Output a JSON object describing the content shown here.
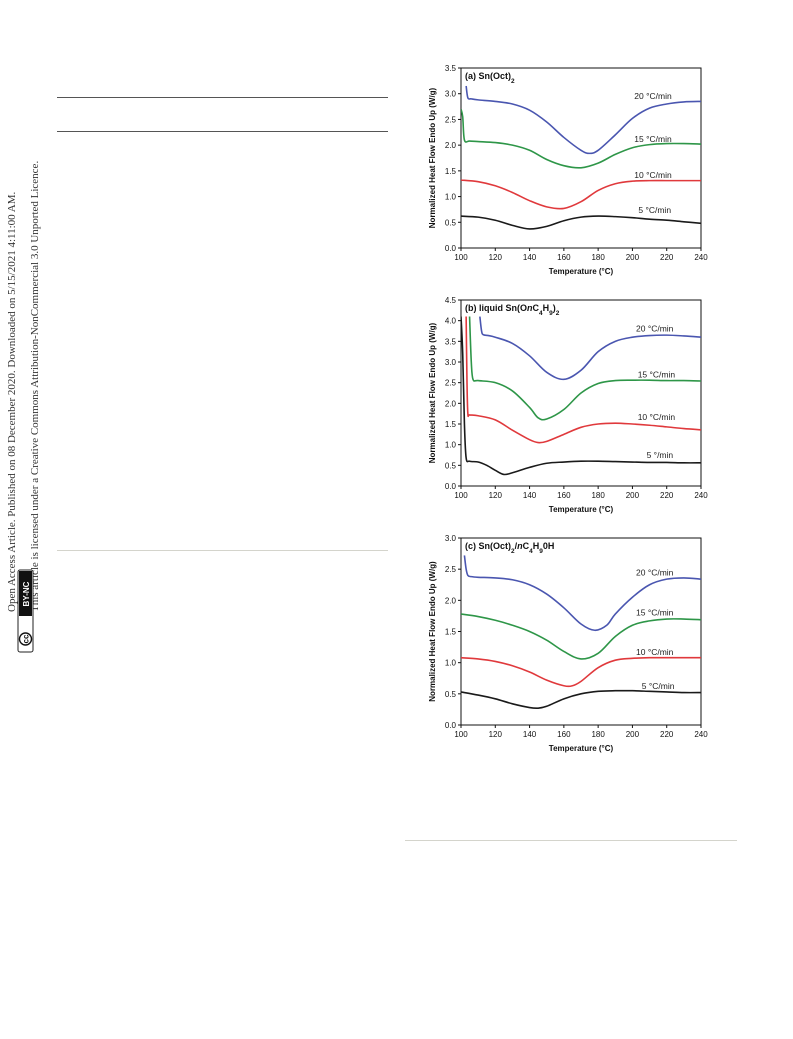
{
  "side_note": {
    "line1": "Open Access Article. Published on 08 December 2020. Downloaded on 5/15/2021 4:11:00 AM.",
    "line2": "This article is licensed under a Creative Commons Attribution-NonCommercial 3.0 Unported Licence.",
    "cc_badge": "cc",
    "license_badge": "BY-NC"
  },
  "colors": {
    "5": "#1a1a1a",
    "10": "#e0393c",
    "15": "#2e9648",
    "20": "#4a56b0"
  },
  "chart_data": [
    {
      "type": "line",
      "title": "(a) Sn(Oct)",
      "title_sub": "2",
      "xlabel": "Temperature (°C)",
      "ylabel": "Normalized Heat Flow Endo Up (W/g)",
      "xlim": [
        100,
        240
      ],
      "ylim": [
        0,
        3.5
      ],
      "xticks": [
        100,
        120,
        140,
        160,
        180,
        200,
        220,
        240
      ],
      "yticks": [
        0.0,
        0.5,
        1.0,
        1.5,
        2.0,
        2.5,
        3.0,
        3.5
      ],
      "series": [
        {
          "key": "5",
          "label": "5 °C/min",
          "label_at": [
            213,
            0.68
          ],
          "x": [
            100,
            110,
            120,
            130,
            140,
            150,
            160,
            170,
            180,
            190,
            200,
            210,
            220,
            230,
            240
          ],
          "y": [
            0.62,
            0.6,
            0.54,
            0.44,
            0.37,
            0.42,
            0.53,
            0.6,
            0.62,
            0.61,
            0.59,
            0.56,
            0.54,
            0.51,
            0.48
          ]
        },
        {
          "key": "10",
          "label": "10 °C/min",
          "label_at": [
            212,
            1.36
          ],
          "x": [
            100,
            110,
            120,
            130,
            140,
            150,
            160,
            170,
            180,
            190,
            200,
            210,
            220,
            230,
            240
          ],
          "y": [
            1.32,
            1.29,
            1.21,
            1.08,
            0.92,
            0.8,
            0.77,
            0.9,
            1.12,
            1.25,
            1.3,
            1.31,
            1.31,
            1.31,
            1.31
          ]
        },
        {
          "key": "15",
          "label": "15 °C/min",
          "label_at": [
            212,
            2.06
          ],
          "x": [
            100,
            101,
            102,
            105,
            110,
            120,
            130,
            140,
            150,
            160,
            170,
            180,
            190,
            200,
            210,
            220,
            230,
            240
          ],
          "y": [
            2.7,
            2.55,
            2.1,
            2.08,
            2.07,
            2.05,
            2.0,
            1.9,
            1.72,
            1.6,
            1.56,
            1.65,
            1.82,
            1.95,
            2.01,
            2.03,
            2.03,
            2.02
          ]
        },
        {
          "key": "20",
          "label": "20 °C/min",
          "label_at": [
            212,
            2.9
          ],
          "x": [
            103,
            104,
            106,
            110,
            120,
            130,
            140,
            150,
            160,
            170,
            175,
            180,
            190,
            200,
            210,
            220,
            230,
            240
          ],
          "y": [
            3.15,
            2.92,
            2.9,
            2.88,
            2.85,
            2.8,
            2.68,
            2.45,
            2.15,
            1.9,
            1.84,
            1.9,
            2.2,
            2.52,
            2.72,
            2.8,
            2.84,
            2.85
          ]
        }
      ]
    },
    {
      "type": "line",
      "title": "(b) liquid Sn(OnC",
      "title_parts": [
        [
          "(b) liquid Sn(O",
          "n"
        ],
        [
          "C",
          ""
        ],
        [
          "4",
          "sub"
        ],
        [
          "H",
          ""
        ],
        [
          "9",
          "sub"
        ],
        [
          ")",
          ""
        ],
        [
          "2",
          "sub"
        ]
      ],
      "xlabel": "Temperature (°C)",
      "ylabel": "Normalized Heat Flow Endo Up (W/g)",
      "xlim": [
        100,
        240
      ],
      "ylim": [
        0,
        4.5
      ],
      "xticks": [
        100,
        120,
        140,
        160,
        180,
        200,
        220,
        240
      ],
      "yticks": [
        0.0,
        0.5,
        1.0,
        1.5,
        2.0,
        2.5,
        3.0,
        3.5,
        4.0,
        4.5
      ],
      "series": [
        {
          "key": "5",
          "label": "5 °/min",
          "label_at": [
            216,
            0.68
          ],
          "x": [
            100,
            101,
            102,
            103,
            105,
            110,
            115,
            120,
            125,
            130,
            140,
            150,
            160,
            170,
            180,
            190,
            200,
            210,
            220,
            230,
            240
          ],
          "y": [
            4.1,
            3.2,
            1.5,
            0.68,
            0.6,
            0.58,
            0.5,
            0.38,
            0.28,
            0.32,
            0.45,
            0.55,
            0.58,
            0.6,
            0.6,
            0.59,
            0.58,
            0.57,
            0.57,
            0.56,
            0.56
          ]
        },
        {
          "key": "10",
          "label": "10 °C/min",
          "label_at": [
            214,
            1.6
          ],
          "x": [
            103,
            103.5,
            104,
            105,
            110,
            120,
            130,
            140,
            145,
            150,
            160,
            170,
            180,
            190,
            200,
            210,
            220,
            230,
            240
          ],
          "y": [
            4.1,
            2.5,
            1.75,
            1.72,
            1.7,
            1.6,
            1.35,
            1.12,
            1.05,
            1.08,
            1.25,
            1.42,
            1.5,
            1.52,
            1.5,
            1.47,
            1.43,
            1.39,
            1.36
          ]
        },
        {
          "key": "15",
          "label": "15 °C/min",
          "label_at": [
            214,
            2.62
          ],
          "x": [
            105,
            106,
            107,
            110,
            120,
            130,
            140,
            145,
            150,
            160,
            170,
            180,
            190,
            200,
            210,
            220,
            230,
            240
          ],
          "y": [
            4.1,
            3.0,
            2.58,
            2.55,
            2.5,
            2.3,
            1.9,
            1.65,
            1.62,
            1.85,
            2.25,
            2.48,
            2.55,
            2.56,
            2.56,
            2.55,
            2.55,
            2.54
          ]
        },
        {
          "key": "20",
          "label": "20 °C/min",
          "label_at": [
            213,
            3.74
          ],
          "x": [
            111,
            112,
            113,
            116,
            120,
            130,
            140,
            150,
            160,
            170,
            180,
            190,
            200,
            210,
            220,
            230,
            240
          ],
          "y": [
            4.1,
            3.75,
            3.66,
            3.64,
            3.6,
            3.45,
            3.15,
            2.75,
            2.58,
            2.8,
            3.25,
            3.5,
            3.6,
            3.64,
            3.65,
            3.63,
            3.6
          ]
        }
      ]
    },
    {
      "type": "line",
      "title": "(c) Sn(Oct)",
      "title_parts": [
        [
          "(c) Sn(Oct)",
          ""
        ],
        [
          "2",
          "sub"
        ],
        [
          "/",
          ""
        ],
        [
          "n",
          "i"
        ],
        [
          "C",
          ""
        ],
        [
          "4",
          "sub"
        ],
        [
          "H",
          ""
        ],
        [
          "9",
          "sub"
        ],
        [
          "0H",
          ""
        ]
      ],
      "xlabel": "Temperature (°C)",
      "ylabel": "Normalized Heat Flow Endo Up (W/g)",
      "xlim": [
        100,
        240
      ],
      "ylim": [
        0,
        3.0
      ],
      "xticks": [
        100,
        120,
        140,
        160,
        180,
        200,
        220,
        240
      ],
      "yticks": [
        0.0,
        0.5,
        1.0,
        1.5,
        2.0,
        2.5,
        3.0
      ],
      "series": [
        {
          "key": "5",
          "label": "5 °C/min",
          "label_at": [
            215,
            0.58
          ],
          "x": [
            100,
            110,
            120,
            130,
            140,
            145,
            150,
            160,
            170,
            180,
            190,
            200,
            210,
            220,
            230,
            240
          ],
          "y": [
            0.53,
            0.48,
            0.42,
            0.34,
            0.28,
            0.27,
            0.3,
            0.42,
            0.5,
            0.54,
            0.55,
            0.55,
            0.54,
            0.53,
            0.52,
            0.52
          ]
        },
        {
          "key": "10",
          "label": "10 °C/min",
          "label_at": [
            213,
            1.12
          ],
          "x": [
            100,
            110,
            120,
            130,
            140,
            150,
            160,
            165,
            170,
            180,
            190,
            200,
            210,
            220,
            230,
            240
          ],
          "y": [
            1.08,
            1.06,
            1.02,
            0.95,
            0.85,
            0.72,
            0.63,
            0.63,
            0.7,
            0.92,
            1.04,
            1.07,
            1.08,
            1.08,
            1.08,
            1.08
          ]
        },
        {
          "key": "15",
          "label": "15 °C/min",
          "label_at": [
            213,
            1.76
          ],
          "x": [
            100,
            110,
            120,
            130,
            140,
            150,
            160,
            170,
            180,
            190,
            200,
            210,
            220,
            230,
            240
          ],
          "y": [
            1.78,
            1.74,
            1.68,
            1.6,
            1.5,
            1.36,
            1.18,
            1.06,
            1.15,
            1.42,
            1.6,
            1.67,
            1.7,
            1.7,
            1.69
          ]
        },
        {
          "key": "20",
          "label": "20 °C/min",
          "label_at": [
            213,
            2.4
          ],
          "x": [
            102,
            103,
            104,
            106,
            110,
            120,
            130,
            140,
            150,
            160,
            170,
            178,
            185,
            190,
            200,
            210,
            220,
            230,
            240
          ],
          "y": [
            2.72,
            2.5,
            2.4,
            2.38,
            2.37,
            2.36,
            2.33,
            2.25,
            2.1,
            1.88,
            1.62,
            1.52,
            1.6,
            1.78,
            2.05,
            2.25,
            2.34,
            2.36,
            2.34
          ]
        }
      ]
    }
  ]
}
